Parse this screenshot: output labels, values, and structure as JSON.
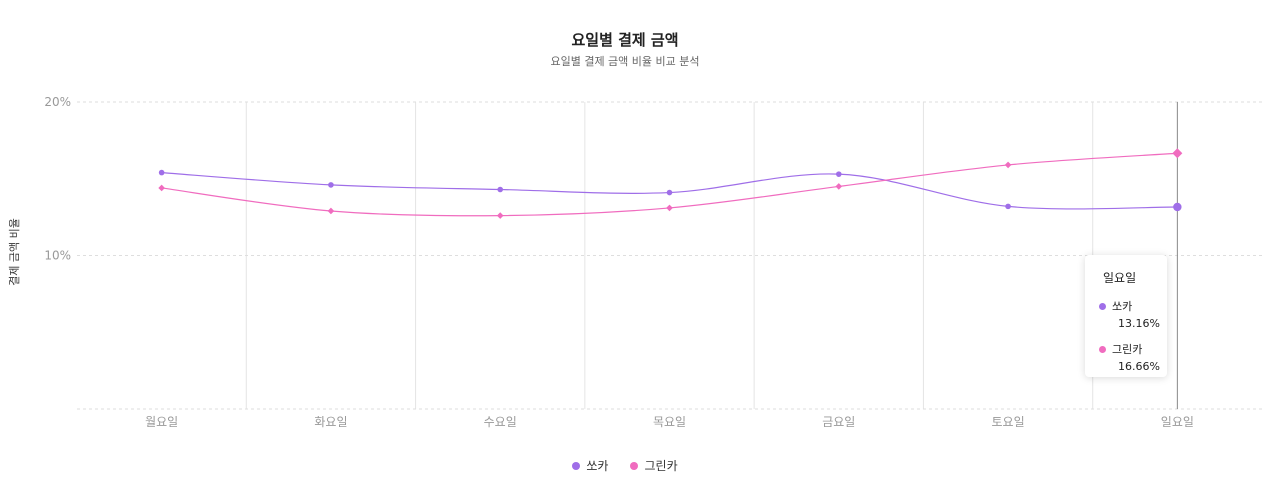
{
  "chart_data": {
    "type": "line",
    "title": "요일별 결제 금액",
    "subtitle": "요일별 결제 금액 비율 비교 분석",
    "ylabel": "결제 금액 비율",
    "xlabel": "",
    "categories": [
      "월요일",
      "화요일",
      "수요일",
      "목요일",
      "금요일",
      "토요일",
      "일요일"
    ],
    "ylim": [
      0,
      20
    ],
    "yticks": [
      {
        "value": 10,
        "label": "10%"
      },
      {
        "value": 20,
        "label": "20%"
      }
    ],
    "series": [
      {
        "name": "쏘카",
        "color": "#9f6ee8",
        "marker": "circle",
        "values": [
          15.4,
          14.6,
          14.3,
          14.1,
          15.3,
          13.2,
          13.16
        ]
      },
      {
        "name": "그린카",
        "color": "#f06cbf",
        "marker": "diamond",
        "values": [
          14.4,
          12.9,
          12.6,
          13.1,
          14.5,
          15.9,
          16.66
        ]
      }
    ],
    "grid": true,
    "legend": "bottom-center"
  },
  "tooltip": {
    "title": "일요일",
    "items": [
      {
        "name": "쏘카",
        "value": "13.16%",
        "color": "#9f6ee8"
      },
      {
        "name": "그린카",
        "value": "16.66%",
        "color": "#f06cbf"
      }
    ]
  }
}
